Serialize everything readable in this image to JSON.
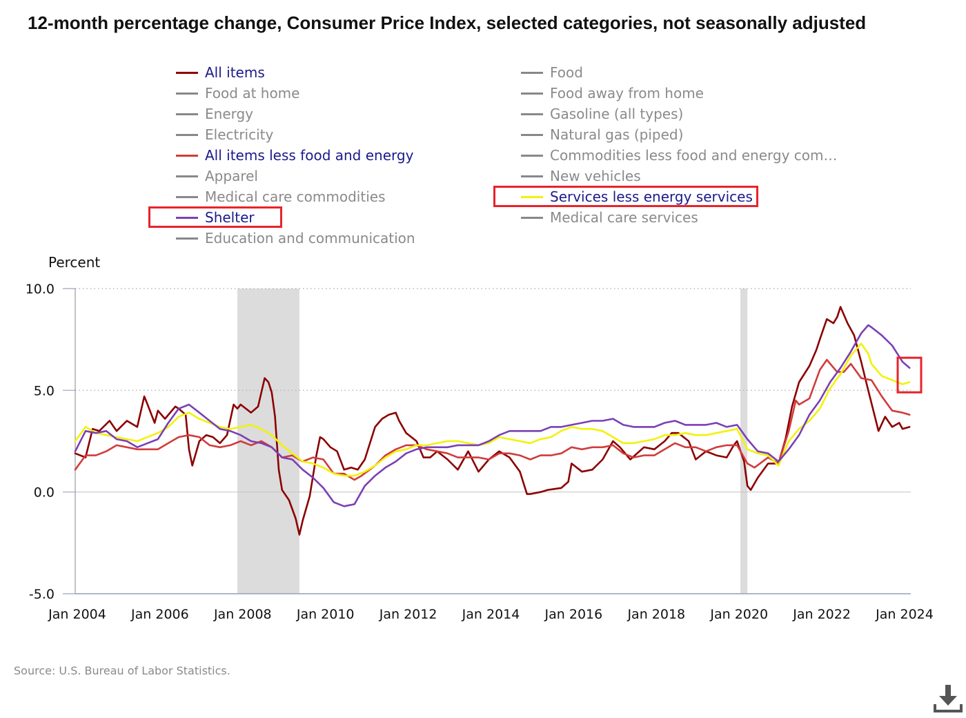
{
  "chart_data": {
    "type": "line",
    "title": "12-month percentage change, Consumer Price Index, selected categories, not seasonally adjusted",
    "ylabel": "Percent",
    "xlabel": "",
    "ylim": [
      -5.0,
      10.0
    ],
    "yticks": [
      "-5.0",
      "0.0",
      "5.0",
      "10.0"
    ],
    "ytick_values": [
      -5,
      0,
      5,
      10
    ],
    "xlim": [
      2004.0,
      2024.2
    ],
    "xticks": [
      "Jan 2004",
      "Jan 2006",
      "Jan 2008",
      "Jan 2010",
      "Jan 2012",
      "Jan 2014",
      "Jan 2016",
      "Jan 2018",
      "Jan 2020",
      "Jan 2022",
      "Jan 2024"
    ],
    "xtick_values": [
      2004,
      2006,
      2008,
      2010,
      2012,
      2014,
      2016,
      2018,
      2020,
      2022,
      2024
    ],
    "recessions": [
      [
        2007.92,
        2009.42
      ],
      [
        2020.08,
        2020.25
      ]
    ],
    "legend": [
      {
        "label": "All items",
        "color": "#8b0000",
        "active": true
      },
      {
        "label": "Food",
        "color": "#888888",
        "active": false
      },
      {
        "label": "Food at home",
        "color": "#888888",
        "active": false
      },
      {
        "label": "Food away from home",
        "color": "#888888",
        "active": false
      },
      {
        "label": "Energy",
        "color": "#888888",
        "active": false
      },
      {
        "label": "Gasoline (all types)",
        "color": "#888888",
        "active": false
      },
      {
        "label": "Electricity",
        "color": "#888888",
        "active": false
      },
      {
        "label": "Natural gas (piped)",
        "color": "#888888",
        "active": false
      },
      {
        "label": "All items less food and energy",
        "color": "#d13b3b",
        "active": true
      },
      {
        "label": "Commodities less food and energy com…",
        "color": "#888888",
        "active": false
      },
      {
        "label": "Apparel",
        "color": "#888888",
        "active": false
      },
      {
        "label": "New vehicles",
        "color": "#888888",
        "active": false
      },
      {
        "label": "Medical care commodities",
        "color": "#888888",
        "active": false
      },
      {
        "label": "Services less energy services",
        "color": "#f2f20a",
        "active": true
      },
      {
        "label": "Shelter",
        "color": "#7b3fb5",
        "active": true
      },
      {
        "label": "Medical care services",
        "color": "#888888",
        "active": false
      },
      {
        "label": "Education and communication",
        "color": "#888888",
        "active": false
      }
    ],
    "series": [
      {
        "name": "All items",
        "color": "#8b0000",
        "x": [
          2004.0,
          2004.25,
          2004.42,
          2004.58,
          2004.83,
          2005.0,
          2005.25,
          2005.5,
          2005.67,
          2005.75,
          2005.92,
          2006.0,
          2006.17,
          2006.42,
          2006.5,
          2006.67,
          2006.75,
          2006.83,
          2007.0,
          2007.17,
          2007.33,
          2007.5,
          2007.67,
          2007.83,
          2007.92,
          2008.0,
          2008.25,
          2008.42,
          2008.58,
          2008.67,
          2008.75,
          2008.83,
          2008.92,
          2009.0,
          2009.17,
          2009.33,
          2009.42,
          2009.5,
          2009.67,
          2009.83,
          2009.92,
          2010.0,
          2010.17,
          2010.33,
          2010.5,
          2010.67,
          2010.83,
          2011.0,
          2011.25,
          2011.42,
          2011.58,
          2011.75,
          2011.83,
          2012.0,
          2012.25,
          2012.42,
          2012.58,
          2012.75,
          2013.0,
          2013.25,
          2013.5,
          2013.75,
          2014.0,
          2014.25,
          2014.5,
          2014.75,
          2014.92,
          2015.0,
          2015.25,
          2015.42,
          2015.75,
          2015.92,
          2016.0,
          2016.25,
          2016.5,
          2016.75,
          2017.0,
          2017.17,
          2017.42,
          2017.75,
          2018.0,
          2018.25,
          2018.42,
          2018.58,
          2018.83,
          2019.0,
          2019.25,
          2019.5,
          2019.75,
          2019.92,
          2020.0,
          2020.17,
          2020.25,
          2020.33,
          2020.5,
          2020.75,
          2021.0,
          2021.17,
          2021.33,
          2021.5,
          2021.75,
          2021.92,
          2022.0,
          2022.17,
          2022.33,
          2022.42,
          2022.5,
          2022.67,
          2022.83,
          2023.0,
          2023.17,
          2023.42,
          2023.58,
          2023.75,
          2023.92,
          2024.0,
          2024.17
        ],
        "y": [
          1.9,
          1.7,
          3.1,
          3.0,
          3.5,
          3.0,
          3.5,
          3.2,
          4.7,
          4.3,
          3.4,
          4.0,
          3.6,
          4.2,
          4.1,
          3.8,
          2.1,
          1.3,
          2.5,
          2.8,
          2.7,
          2.4,
          2.8,
          4.3,
          4.1,
          4.3,
          3.9,
          4.2,
          5.6,
          5.4,
          4.9,
          3.7,
          1.1,
          0.1,
          -0.4,
          -1.3,
          -2.1,
          -1.4,
          -0.2,
          1.8,
          2.7,
          2.6,
          2.2,
          2.0,
          1.1,
          1.2,
          1.1,
          1.6,
          3.2,
          3.6,
          3.8,
          3.9,
          3.5,
          2.9,
          2.5,
          1.7,
          1.7,
          2.0,
          1.6,
          1.1,
          2.0,
          1.0,
          1.6,
          2.0,
          1.7,
          1.0,
          -0.1,
          -0.1,
          0.0,
          0.1,
          0.2,
          0.5,
          1.4,
          1.0,
          1.1,
          1.6,
          2.5,
          2.2,
          1.6,
          2.2,
          2.1,
          2.5,
          2.9,
          2.9,
          2.5,
          1.6,
          2.0,
          1.8,
          1.7,
          2.3,
          2.5,
          1.5,
          0.3,
          0.1,
          0.7,
          1.4,
          1.4,
          2.6,
          4.2,
          5.4,
          6.2,
          7.0,
          7.5,
          8.5,
          8.3,
          8.6,
          9.1,
          8.3,
          7.7,
          6.4,
          5.0,
          3.0,
          3.7,
          3.2,
          3.4,
          3.1,
          3.2
        ]
      },
      {
        "name": "All items less food and energy",
        "color": "#d13b3b",
        "x": [
          2004.0,
          2004.25,
          2004.5,
          2004.75,
          2005.0,
          2005.25,
          2005.5,
          2005.75,
          2006.0,
          2006.25,
          2006.5,
          2006.75,
          2007.0,
          2007.25,
          2007.5,
          2007.75,
          2008.0,
          2008.25,
          2008.5,
          2008.75,
          2009.0,
          2009.25,
          2009.5,
          2009.75,
          2010.0,
          2010.25,
          2010.5,
          2010.75,
          2010.92,
          2011.25,
          2011.5,
          2011.75,
          2012.0,
          2012.25,
          2012.5,
          2012.75,
          2013.0,
          2013.25,
          2013.5,
          2013.75,
          2014.0,
          2014.25,
          2014.5,
          2014.75,
          2015.0,
          2015.25,
          2015.5,
          2015.75,
          2016.0,
          2016.25,
          2016.5,
          2016.75,
          2017.0,
          2017.25,
          2017.5,
          2017.75,
          2018.0,
          2018.25,
          2018.5,
          2018.75,
          2019.0,
          2019.25,
          2019.5,
          2019.75,
          2020.0,
          2020.25,
          2020.42,
          2020.75,
          2021.0,
          2021.25,
          2021.42,
          2021.5,
          2021.75,
          2022.0,
          2022.17,
          2022.42,
          2022.58,
          2022.75,
          2023.0,
          2023.25,
          2023.5,
          2023.75,
          2024.0,
          2024.17
        ],
        "y": [
          1.1,
          1.8,
          1.8,
          2.0,
          2.3,
          2.2,
          2.1,
          2.1,
          2.1,
          2.4,
          2.7,
          2.8,
          2.7,
          2.3,
          2.2,
          2.3,
          2.5,
          2.3,
          2.5,
          2.2,
          1.7,
          1.8,
          1.5,
          1.7,
          1.6,
          0.9,
          0.9,
          0.6,
          0.8,
          1.3,
          1.8,
          2.1,
          2.3,
          2.3,
          2.1,
          2.0,
          1.9,
          1.7,
          1.7,
          1.7,
          1.6,
          1.9,
          1.9,
          1.8,
          1.6,
          1.8,
          1.8,
          1.9,
          2.2,
          2.1,
          2.2,
          2.2,
          2.3,
          1.9,
          1.7,
          1.8,
          1.8,
          2.1,
          2.4,
          2.2,
          2.2,
          2.0,
          2.2,
          2.3,
          2.3,
          1.4,
          1.2,
          1.7,
          1.4,
          3.0,
          4.5,
          4.3,
          4.6,
          6.0,
          6.5,
          5.9,
          5.9,
          6.3,
          5.6,
          5.5,
          4.7,
          4.0,
          3.9,
          3.8
        ]
      },
      {
        "name": "Services less energy services",
        "color": "#f2f20a",
        "x": [
          2004.0,
          2004.25,
          2004.5,
          2004.75,
          2005.0,
          2005.25,
          2005.5,
          2005.75,
          2006.0,
          2006.25,
          2006.5,
          2006.75,
          2007.0,
          2007.25,
          2007.5,
          2007.75,
          2008.0,
          2008.25,
          2008.5,
          2008.75,
          2009.0,
          2009.25,
          2009.5,
          2009.75,
          2010.0,
          2010.25,
          2010.5,
          2010.75,
          2011.0,
          2011.25,
          2011.5,
          2011.75,
          2012.0,
          2012.25,
          2012.5,
          2012.75,
          2013.0,
          2013.25,
          2013.5,
          2013.75,
          2014.0,
          2014.25,
          2014.5,
          2014.75,
          2015.0,
          2015.25,
          2015.5,
          2015.75,
          2016.0,
          2016.25,
          2016.5,
          2016.75,
          2017.0,
          2017.25,
          2017.5,
          2017.75,
          2018.0,
          2018.25,
          2018.5,
          2018.75,
          2019.0,
          2019.25,
          2019.5,
          2019.75,
          2020.0,
          2020.25,
          2020.5,
          2020.75,
          2021.0,
          2021.25,
          2021.5,
          2021.75,
          2022.0,
          2022.25,
          2022.5,
          2022.75,
          2023.0,
          2023.17,
          2023.25,
          2023.5,
          2023.75,
          2024.0,
          2024.17
        ],
        "y": [
          2.5,
          3.2,
          2.9,
          2.8,
          2.7,
          2.6,
          2.5,
          2.7,
          2.9,
          3.2,
          3.7,
          3.9,
          3.6,
          3.4,
          3.2,
          3.1,
          3.2,
          3.3,
          3.1,
          2.8,
          2.3,
          1.9,
          1.5,
          1.4,
          1.2,
          0.9,
          0.8,
          0.8,
          1.0,
          1.3,
          1.7,
          2.0,
          2.1,
          2.3,
          2.3,
          2.4,
          2.5,
          2.5,
          2.4,
          2.3,
          2.4,
          2.7,
          2.6,
          2.5,
          2.4,
          2.6,
          2.7,
          3.0,
          3.2,
          3.1,
          3.1,
          3.0,
          2.7,
          2.4,
          2.4,
          2.5,
          2.6,
          2.8,
          2.8,
          2.9,
          2.8,
          2.8,
          2.9,
          3.0,
          3.1,
          2.1,
          1.9,
          1.8,
          1.3,
          2.5,
          3.1,
          3.5,
          4.1,
          5.1,
          5.8,
          6.7,
          7.3,
          6.8,
          6.3,
          5.7,
          5.5,
          5.3,
          5.4
        ]
      },
      {
        "name": "Shelter",
        "color": "#7b3fb5",
        "x": [
          2004.0,
          2004.25,
          2004.5,
          2004.75,
          2005.0,
          2005.25,
          2005.5,
          2005.75,
          2006.0,
          2006.25,
          2006.5,
          2006.75,
          2007.0,
          2007.25,
          2007.5,
          2007.75,
          2008.0,
          2008.25,
          2008.5,
          2008.75,
          2009.0,
          2009.25,
          2009.5,
          2009.75,
          2010.0,
          2010.25,
          2010.5,
          2010.75,
          2011.0,
          2011.25,
          2011.5,
          2011.75,
          2012.0,
          2012.25,
          2012.5,
          2012.75,
          2013.0,
          2013.25,
          2013.5,
          2013.75,
          2014.0,
          2014.25,
          2014.5,
          2014.75,
          2015.0,
          2015.25,
          2015.5,
          2015.75,
          2016.0,
          2016.25,
          2016.5,
          2016.75,
          2017.0,
          2017.25,
          2017.5,
          2017.75,
          2018.0,
          2018.25,
          2018.5,
          2018.75,
          2019.0,
          2019.25,
          2019.5,
          2019.75,
          2020.0,
          2020.25,
          2020.5,
          2020.75,
          2021.0,
          2021.25,
          2021.5,
          2021.75,
          2022.0,
          2022.25,
          2022.5,
          2022.75,
          2023.0,
          2023.17,
          2023.25,
          2023.5,
          2023.75,
          2024.0,
          2024.17
        ],
        "y": [
          2.0,
          3.0,
          2.9,
          3.0,
          2.6,
          2.5,
          2.2,
          2.4,
          2.6,
          3.4,
          4.1,
          4.3,
          3.9,
          3.5,
          3.1,
          3.0,
          2.8,
          2.5,
          2.4,
          2.2,
          1.7,
          1.6,
          1.1,
          0.7,
          0.2,
          -0.5,
          -0.7,
          -0.6,
          0.3,
          0.8,
          1.2,
          1.5,
          1.9,
          2.1,
          2.2,
          2.2,
          2.2,
          2.3,
          2.3,
          2.3,
          2.5,
          2.8,
          3.0,
          3.0,
          3.0,
          3.0,
          3.2,
          3.2,
          3.3,
          3.4,
          3.5,
          3.5,
          3.6,
          3.3,
          3.2,
          3.2,
          3.2,
          3.4,
          3.5,
          3.3,
          3.3,
          3.3,
          3.4,
          3.2,
          3.3,
          2.6,
          2.0,
          1.9,
          1.5,
          2.1,
          2.8,
          3.8,
          4.5,
          5.4,
          6.1,
          6.9,
          7.8,
          8.2,
          8.1,
          7.7,
          7.2,
          6.4,
          6.1
        ]
      }
    ]
  },
  "highlights": [
    "Services less energy services",
    "Shelter",
    "latest values"
  ],
  "source": "Source: U.S. Bureau of Labor Statistics.",
  "download": {
    "icon": "download-icon",
    "label": "Download chart"
  }
}
